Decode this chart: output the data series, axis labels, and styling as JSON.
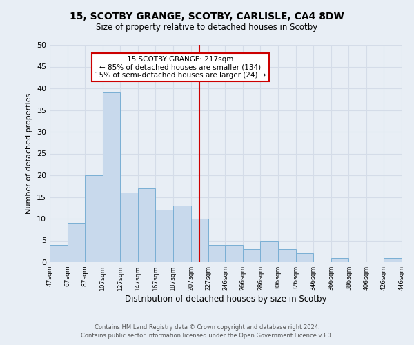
{
  "title1": "15, SCOTBY GRANGE, SCOTBY, CARLISLE, CA4 8DW",
  "title2": "Size of property relative to detached houses in Scotby",
  "xlabel": "Distribution of detached houses by size in Scotby",
  "ylabel": "Number of detached properties",
  "bin_edges": [
    47,
    67,
    87,
    107,
    127,
    147,
    167,
    187,
    207,
    227,
    246,
    266,
    286,
    306,
    326,
    346,
    366,
    386,
    406,
    426,
    446
  ],
  "counts": [
    4,
    9,
    20,
    39,
    16,
    17,
    12,
    13,
    10,
    4,
    4,
    3,
    5,
    3,
    2,
    0,
    1,
    0,
    0,
    1
  ],
  "bar_facecolor": "#c8d9ec",
  "bar_edgecolor": "#7aafd4",
  "grid_color": "#d4dce8",
  "property_line_x": 217,
  "property_line_color": "#cc0000",
  "annotation_text": "15 SCOTBY GRANGE: 217sqm\n← 85% of detached houses are smaller (134)\n15% of semi-detached houses are larger (24) →",
  "annotation_box_edgecolor": "#cc0000",
  "annotation_box_facecolor": "#ffffff",
  "ylim": [
    0,
    50
  ],
  "yticks": [
    0,
    5,
    10,
    15,
    20,
    25,
    30,
    35,
    40,
    45,
    50
  ],
  "footer1": "Contains HM Land Registry data © Crown copyright and database right 2024.",
  "footer2": "Contains public sector information licensed under the Open Government Licence v3.0.",
  "background_color": "#e8eef5"
}
